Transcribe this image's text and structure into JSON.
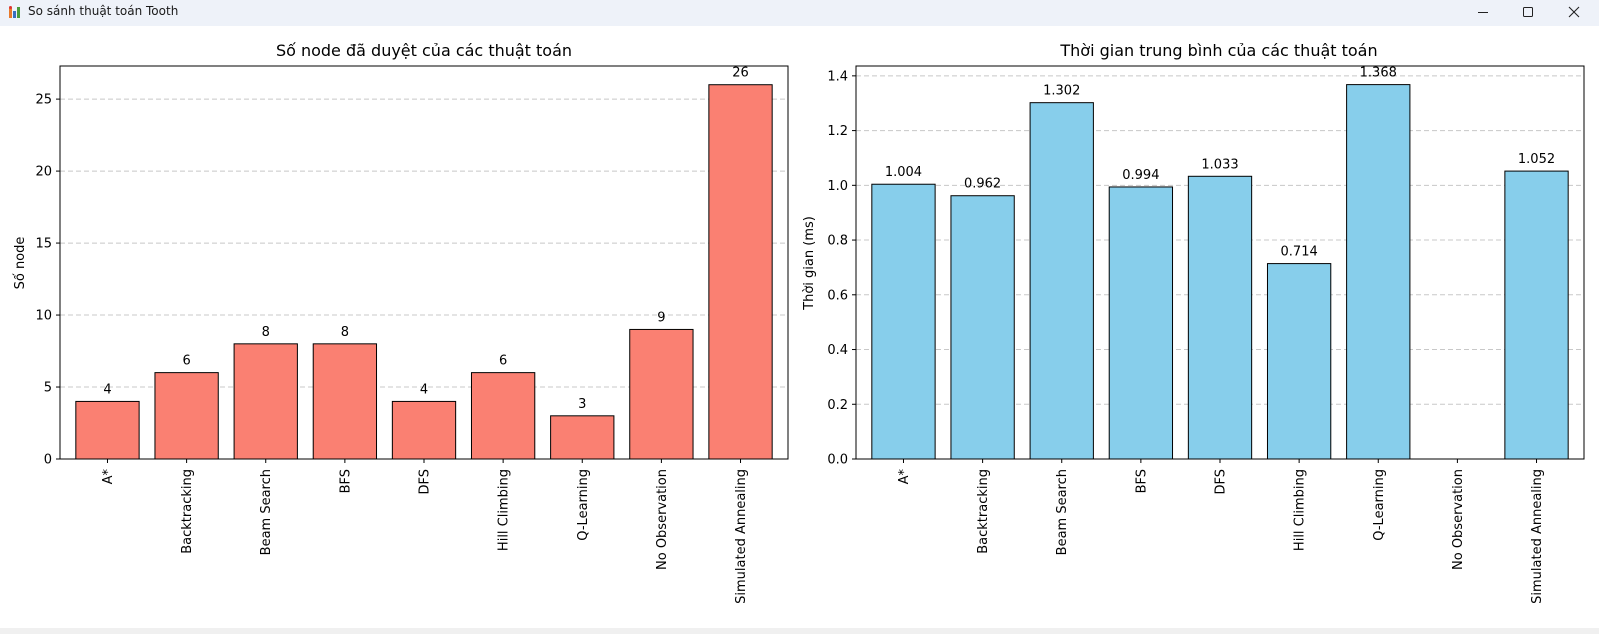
{
  "window": {
    "title": "So sánh thuật toán Tooth",
    "controls": {
      "minimize": "minimize-icon",
      "maximize": "maximize-icon",
      "close": "close-icon"
    }
  },
  "chart_data": [
    {
      "type": "bar",
      "title": "Số node đã duyệt của các thuật toán",
      "xlabel": "",
      "ylabel": "Số node",
      "categories": [
        "A*",
        "Backtracking",
        "Beam Search",
        "BFS",
        "DFS",
        "Hill Climbing",
        "Q-Learning",
        "No Observation",
        "Simulated Annealing"
      ],
      "values": [
        4,
        6,
        8,
        8,
        4,
        6,
        3,
        9,
        26
      ],
      "value_labels": [
        "4",
        "6",
        "8",
        "8",
        "4",
        "6",
        "3",
        "9",
        "26"
      ],
      "ylim": [
        0,
        27.3
      ],
      "yticks": [
        0,
        5,
        10,
        15,
        20,
        25
      ],
      "ytick_labels": [
        "0",
        "5",
        "10",
        "15",
        "20",
        "25"
      ],
      "bar_color": "#fa8072",
      "grid": "y-dashed"
    },
    {
      "type": "bar",
      "title": "Thời gian trung bình của các thuật toán",
      "xlabel": "",
      "ylabel": "Thời gian (ms)",
      "categories": [
        "A*",
        "Backtracking",
        "Beam Search",
        "BFS",
        "DFS",
        "Hill Climbing",
        "Q-Learning",
        "No Observation",
        "Simulated Annealing"
      ],
      "values": [
        1.004,
        0.962,
        1.302,
        0.994,
        1.033,
        0.714,
        1.368,
        0,
        1.052
      ],
      "value_labels": [
        "1.004",
        "0.962",
        "1.302",
        "0.994",
        "1.033",
        "0.714",
        "1.368",
        "",
        "1.052"
      ],
      "ylim": [
        0,
        1.436
      ],
      "yticks": [
        0,
        0.2,
        0.4,
        0.6,
        0.8,
        1.0,
        1.2,
        1.4
      ],
      "ytick_labels": [
        "0.0",
        "0.2",
        "0.4",
        "0.6",
        "0.8",
        "1.0",
        "1.2",
        "1.4"
      ],
      "bar_color": "#87ceeb",
      "grid": "y-dashed"
    }
  ]
}
